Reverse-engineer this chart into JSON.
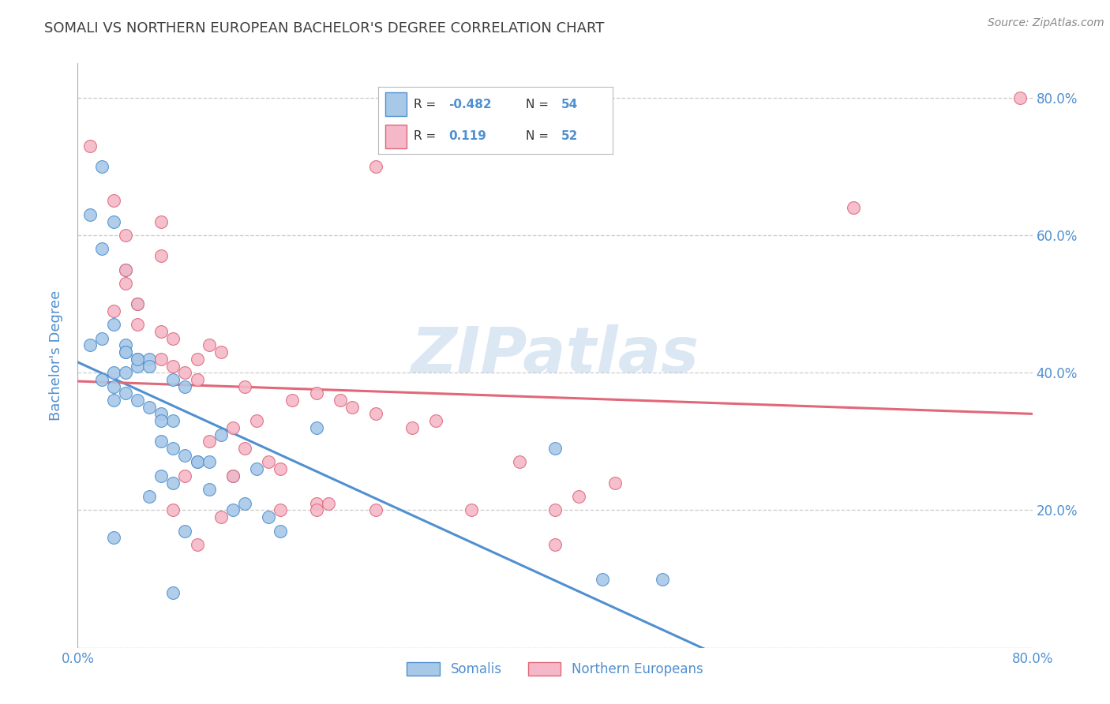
{
  "title": "SOMALI VS NORTHERN EUROPEAN BACHELOR'S DEGREE CORRELATION CHART",
  "source": "Source: ZipAtlas.com",
  "ylabel": "Bachelor's Degree",
  "watermark": "ZIPatlas",
  "xmin": 0.0,
  "xmax": 0.8,
  "ymin": 0.0,
  "ymax": 0.85,
  "somali_R": -0.482,
  "somali_N": 54,
  "northern_R": 0.119,
  "northern_N": 52,
  "somali_color": "#a8c8e8",
  "northern_color": "#f4b8c8",
  "somali_line_color": "#5090d0",
  "northern_line_color": "#e06878",
  "title_color": "#404040",
  "axis_label_color": "#5090d0",
  "tick_label_color": "#5090d0",
  "grid_color": "#cccccc",
  "background_color": "#ffffff",
  "somali_x": [
    0.02,
    0.01,
    0.03,
    0.02,
    0.04,
    0.05,
    0.03,
    0.02,
    0.01,
    0.04,
    0.04,
    0.05,
    0.06,
    0.05,
    0.03,
    0.04,
    0.02,
    0.03,
    0.04,
    0.03,
    0.05,
    0.06,
    0.07,
    0.08,
    0.04,
    0.05,
    0.06,
    0.07,
    0.07,
    0.08,
    0.09,
    0.1,
    0.08,
    0.09,
    0.1,
    0.07,
    0.08,
    0.11,
    0.06,
    0.12,
    0.13,
    0.11,
    0.15,
    0.14,
    0.13,
    0.16,
    0.2,
    0.17,
    0.4,
    0.44,
    0.03,
    0.09,
    0.08,
    0.49
  ],
  "somali_y": [
    0.7,
    0.63,
    0.62,
    0.58,
    0.55,
    0.5,
    0.47,
    0.45,
    0.44,
    0.44,
    0.43,
    0.42,
    0.42,
    0.41,
    0.4,
    0.4,
    0.39,
    0.38,
    0.37,
    0.36,
    0.36,
    0.35,
    0.34,
    0.33,
    0.43,
    0.42,
    0.41,
    0.33,
    0.3,
    0.29,
    0.28,
    0.27,
    0.39,
    0.38,
    0.27,
    0.25,
    0.24,
    0.23,
    0.22,
    0.31,
    0.25,
    0.27,
    0.26,
    0.21,
    0.2,
    0.19,
    0.32,
    0.17,
    0.29,
    0.1,
    0.16,
    0.17,
    0.08,
    0.1
  ],
  "northern_x": [
    0.79,
    0.01,
    0.25,
    0.03,
    0.07,
    0.04,
    0.07,
    0.04,
    0.04,
    0.05,
    0.03,
    0.05,
    0.07,
    0.08,
    0.11,
    0.12,
    0.1,
    0.07,
    0.08,
    0.09,
    0.1,
    0.14,
    0.2,
    0.18,
    0.22,
    0.23,
    0.25,
    0.3,
    0.15,
    0.13,
    0.11,
    0.14,
    0.16,
    0.17,
    0.13,
    0.09,
    0.45,
    0.28,
    0.42,
    0.2,
    0.2,
    0.33,
    0.4,
    0.08,
    0.65,
    0.17,
    0.12,
    0.25,
    0.21,
    0.1,
    0.37,
    0.4
  ],
  "northern_y": [
    0.8,
    0.73,
    0.7,
    0.65,
    0.62,
    0.6,
    0.57,
    0.55,
    0.53,
    0.5,
    0.49,
    0.47,
    0.46,
    0.45,
    0.44,
    0.43,
    0.42,
    0.42,
    0.41,
    0.4,
    0.39,
    0.38,
    0.37,
    0.36,
    0.36,
    0.35,
    0.34,
    0.33,
    0.33,
    0.32,
    0.3,
    0.29,
    0.27,
    0.26,
    0.25,
    0.25,
    0.24,
    0.32,
    0.22,
    0.21,
    0.2,
    0.2,
    0.2,
    0.2,
    0.64,
    0.2,
    0.19,
    0.2,
    0.21,
    0.15,
    0.27,
    0.15
  ]
}
